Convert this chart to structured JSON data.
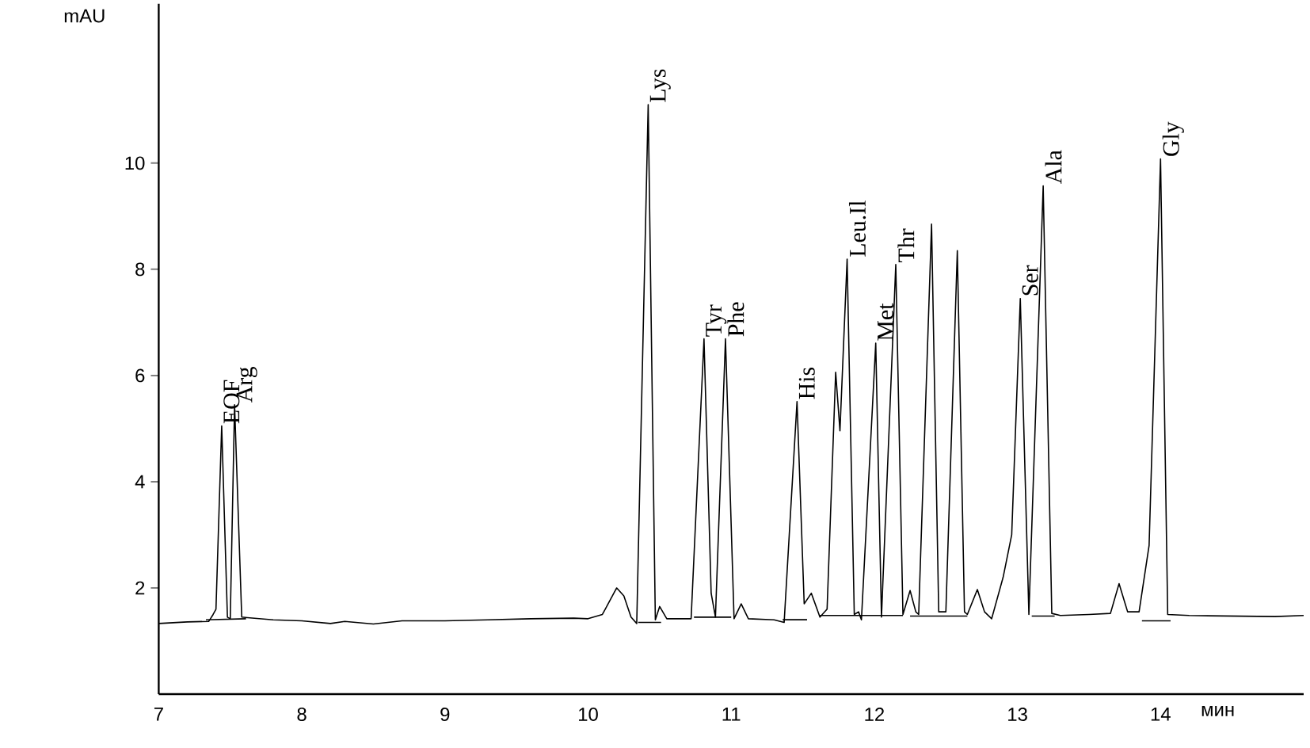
{
  "chart_data": {
    "type": "line",
    "xlabel": "мин",
    "ylabel": "mAU",
    "xlim": [
      7,
      15
    ],
    "ylim": [
      0,
      13
    ],
    "xticks": [
      7,
      8,
      9,
      10,
      11,
      12,
      13,
      14
    ],
    "yticks": [
      2,
      4,
      6,
      8,
      10
    ],
    "marker": "none",
    "line_style": "solid",
    "series": [
      {
        "color": "#000000",
        "x": [
          7.0,
          7.2,
          7.35,
          7.38,
          7.4,
          7.44,
          7.48,
          7.5,
          7.53,
          7.58,
          7.62,
          7.8,
          8.0,
          8.2,
          8.3,
          8.5,
          8.7,
          9.0,
          9.3,
          9.6,
          9.9,
          10.0,
          10.1,
          10.2,
          10.25,
          10.3,
          10.34,
          10.42,
          10.47,
          10.5,
          10.55,
          10.72,
          10.81,
          10.86,
          10.89,
          10.96,
          11.02,
          11.07,
          11.12,
          11.3,
          11.37,
          11.46,
          11.51,
          11.56,
          11.62,
          11.67,
          11.73,
          11.76,
          11.81,
          11.86,
          11.89,
          11.91,
          12.01,
          12.05,
          12.15,
          12.2,
          12.25,
          12.29,
          12.31,
          12.4,
          12.45,
          12.5,
          12.58,
          12.63,
          12.65,
          12.72,
          12.77,
          12.82,
          12.9,
          12.96,
          13.02,
          13.08,
          13.18,
          13.24,
          13.3,
          13.5,
          13.65,
          13.71,
          13.77,
          13.85,
          13.92,
          14.0,
          14.05,
          14.2,
          14.5,
          14.8,
          15.0
        ],
        "values": [
          1.33,
          1.36,
          1.37,
          1.5,
          1.6,
          5.05,
          1.45,
          1.42,
          5.45,
          1.45,
          1.44,
          1.4,
          1.38,
          1.33,
          1.37,
          1.32,
          1.38,
          1.38,
          1.4,
          1.42,
          1.43,
          1.42,
          1.5,
          2.0,
          1.85,
          1.45,
          1.33,
          11.1,
          1.4,
          1.65,
          1.42,
          1.42,
          6.69,
          1.9,
          1.45,
          6.69,
          1.42,
          1.7,
          1.42,
          1.4,
          1.35,
          5.51,
          1.7,
          1.9,
          1.45,
          1.6,
          6.06,
          4.96,
          8.19,
          1.5,
          1.55,
          1.4,
          6.61,
          1.45,
          8.09,
          1.5,
          1.95,
          1.55,
          1.5,
          8.85,
          1.55,
          1.55,
          8.35,
          1.55,
          1.5,
          1.97,
          1.55,
          1.42,
          2.2,
          3.0,
          7.45,
          1.5,
          9.57,
          1.52,
          1.48,
          1.5,
          1.52,
          2.08,
          1.55,
          1.55,
          2.8,
          10.08,
          1.5,
          1.48,
          1.47,
          1.46,
          1.48
        ]
      },
      {
        "color": "#000000",
        "x": [
          7.33,
          7.61,
          7.62,
          10.35,
          10.51,
          10.52,
          10.74,
          11.0,
          11.01,
          11.36,
          11.53,
          11.54,
          11.62,
          12.2,
          12.21,
          12.25,
          12.65,
          12.66,
          13.1,
          13.26,
          13.27,
          13.87,
          14.07
        ],
        "values": [
          1.4,
          1.42,
          null,
          1.35,
          1.35,
          null,
          1.45,
          1.45,
          null,
          1.4,
          1.4,
          null,
          1.48,
          1.48,
          null,
          1.47,
          1.47,
          null,
          1.47,
          1.47,
          null,
          1.38,
          1.38
        ]
      }
    ],
    "annotations": [
      {
        "text": "EOF",
        "x": 7.44,
        "y": 5.05
      },
      {
        "text": "Arg",
        "x": 7.53,
        "y": 5.45
      },
      {
        "text": "Lys",
        "x": 10.42,
        "y": 11.1
      },
      {
        "text": "Tyr",
        "x": 10.81,
        "y": 6.69
      },
      {
        "text": "Phe",
        "x": 10.96,
        "y": 6.69
      },
      {
        "text": "His",
        "x": 11.46,
        "y": 5.51
      },
      {
        "text": "Leu.Il",
        "x": 11.81,
        "y": 8.19
      },
      {
        "text": "Met",
        "x": 12.01,
        "y": 6.61
      },
      {
        "text": "Thr",
        "x": 12.15,
        "y": 8.09
      },
      {
        "text": "Ser",
        "x": 13.02,
        "y": 7.45
      },
      {
        "text": "Ala",
        "x": 13.18,
        "y": 9.57
      },
      {
        "text": "Gly",
        "x": 14.0,
        "y": 10.08
      }
    ]
  }
}
